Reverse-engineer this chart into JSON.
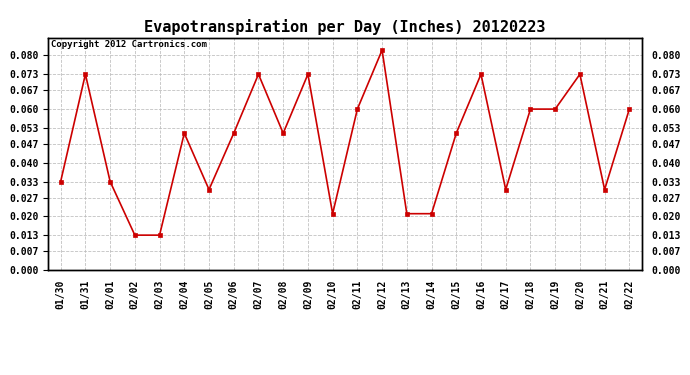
{
  "title": "Evapotranspiration per Day (Inches) 20120223",
  "copyright": "Copyright 2012 Cartronics.com",
  "labels": [
    "01/30",
    "01/31",
    "02/01",
    "02/02",
    "02/03",
    "02/04",
    "02/05",
    "02/06",
    "02/07",
    "02/08",
    "02/09",
    "02/10",
    "02/11",
    "02/12",
    "02/13",
    "02/14",
    "02/15",
    "02/16",
    "02/17",
    "02/18",
    "02/19",
    "02/20",
    "02/21",
    "02/22"
  ],
  "values": [
    0.033,
    0.073,
    0.033,
    0.013,
    0.013,
    0.051,
    0.03,
    0.051,
    0.073,
    0.051,
    0.073,
    0.021,
    0.06,
    0.082,
    0.021,
    0.021,
    0.051,
    0.073,
    0.03,
    0.06,
    0.06,
    0.073,
    0.03,
    0.06
  ],
  "line_color": "#cc0000",
  "marker": "s",
  "marker_size": 2.5,
  "ylim": [
    0.0,
    0.0867
  ],
  "yticks": [
    0.0,
    0.007,
    0.013,
    0.02,
    0.027,
    0.033,
    0.04,
    0.047,
    0.053,
    0.06,
    0.067,
    0.073,
    0.08
  ],
  "bg_color": "#ffffff",
  "plot_bg_color": "#ffffff",
  "grid_color": "#bbbbbb",
  "title_fontsize": 11,
  "copyright_fontsize": 6.5,
  "tick_fontsize": 7,
  "tick_fontweight": "bold"
}
